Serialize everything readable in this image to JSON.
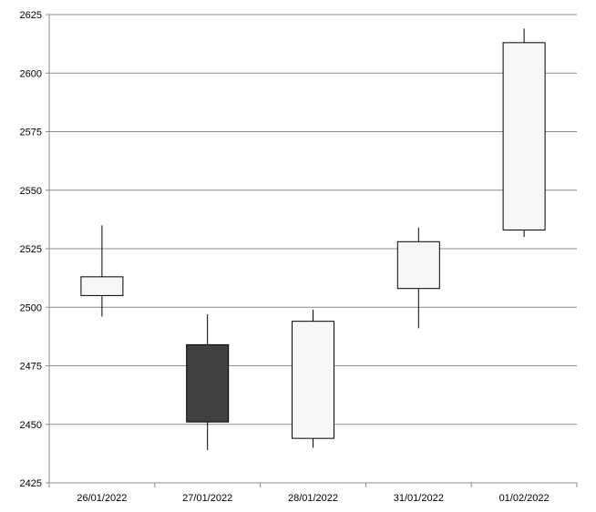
{
  "chart_data": {
    "type": "candlestick",
    "title": "",
    "xlabel": "",
    "ylabel": "",
    "ylim": [
      2425,
      2625
    ],
    "yticks": [
      2425,
      2450,
      2475,
      2500,
      2525,
      2550,
      2575,
      2600,
      2625
    ],
    "grid": true,
    "legend": "none",
    "categories": [
      "26/01/2022",
      "27/01/2022",
      "28/01/2022",
      "31/01/2022",
      "01/02/2022"
    ],
    "open": [
      2505,
      2484,
      2444,
      2508,
      2533
    ],
    "high": [
      2535,
      2497,
      2499,
      2534,
      2619
    ],
    "low": [
      2496,
      2439,
      2440,
      2491,
      2530
    ],
    "close": [
      2513,
      2451,
      2494,
      2528,
      2613
    ],
    "colors": {
      "up": "#f7f7f7",
      "down": "#404040",
      "line": "#000000",
      "grid": "#8c8c8c"
    }
  }
}
